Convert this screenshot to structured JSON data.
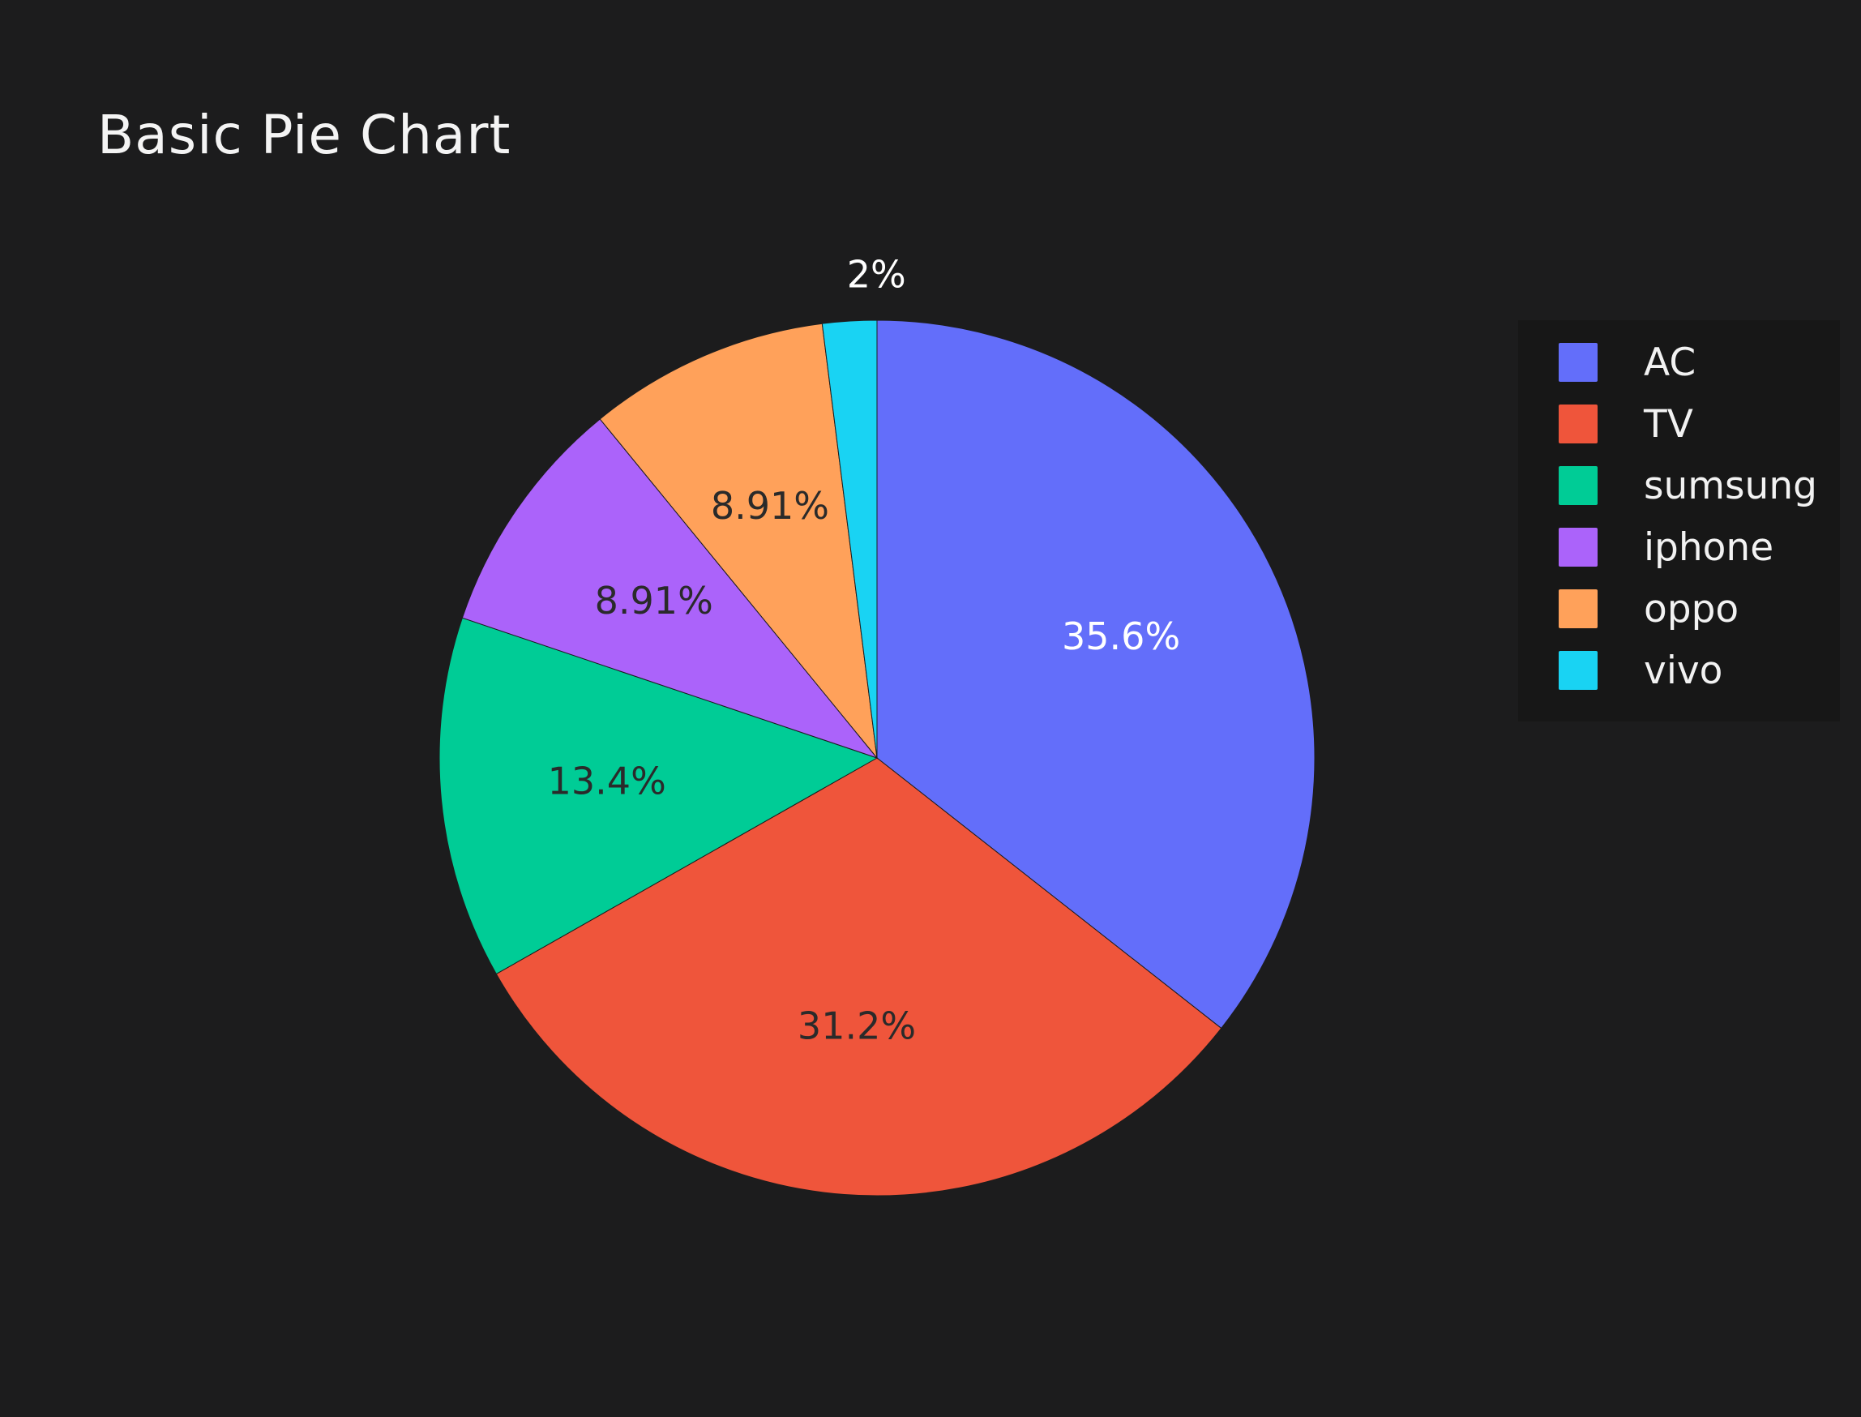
{
  "chart_data": {
    "type": "pie",
    "title": "Basic Pie Chart",
    "categories": [
      "AC",
      "TV",
      "sumsung",
      "iphone",
      "oppo",
      "vivo"
    ],
    "values": [
      35.6,
      31.2,
      13.4,
      8.91,
      8.91,
      2
    ],
    "labels": [
      "35.6%",
      "31.2%",
      "13.4%",
      "8.91%",
      "8.91%",
      "2%"
    ],
    "colors": [
      "#636efa",
      "#ef553b",
      "#00cc96",
      "#ab63fa",
      "#ffa15a",
      "#19d3f3"
    ],
    "direction": "clockwise",
    "legend_placement": "top-right"
  }
}
